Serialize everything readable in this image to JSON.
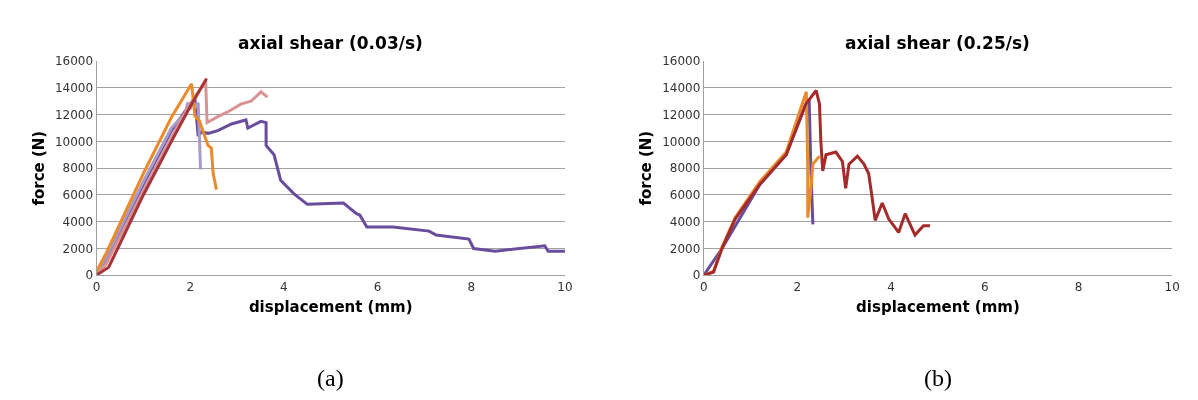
{
  "chart_data": [
    {
      "type": "line",
      "title": "axial shear (0.03/s)",
      "xlabel": "displacement (mm)",
      "ylabel": "force (N)",
      "annotations": [
        "(a)"
      ],
      "xlim": [
        0,
        10
      ],
      "xticks": [
        0,
        2,
        4,
        6,
        8,
        10
      ],
      "ylim": [
        0,
        16000
      ],
      "yticks": [
        0,
        2000,
        4000,
        6000,
        8000,
        10000,
        12000,
        14000,
        16000
      ],
      "grid": "y",
      "line_style": "solid",
      "series": [
        {
          "color": "#6a4c9c",
          "x": [
            0,
            0.2,
            1.0,
            1.6,
            2.0,
            2.1,
            2.17,
            2.24,
            2.38,
            2.59,
            2.88,
            3.19,
            3.23,
            3.51,
            3.62,
            3.62,
            3.79,
            3.93,
            4.21,
            4.5,
            5.27,
            5.55,
            5.62,
            5.77,
            6.33,
            7.1,
            7.25,
            7.95,
            8.05,
            8.51,
            9.57,
            9.64,
            10.0
          ],
          "values": [
            200,
            1200,
            6800,
            10800,
            12800,
            13200,
            10400,
            10700,
            10600,
            10800,
            11300,
            11600,
            11000,
            11500,
            11400,
            9700,
            9000,
            7100,
            6100,
            5300,
            5400,
            4600,
            4500,
            3600,
            3600,
            3300,
            3000,
            2700,
            2000,
            1800,
            2200,
            1800,
            1800
          ]
        },
        {
          "color": "#a99bc9",
          "x": [
            0,
            0.2,
            1.0,
            1.6,
            1.89,
            1.95,
            2.0,
            2.07,
            2.12,
            2.17,
            2.2,
            2.22
          ],
          "values": [
            200,
            1300,
            7000,
            11000,
            12100,
            12900,
            12400,
            13000,
            12500,
            12900,
            10000,
            7900
          ]
        },
        {
          "color": "#d89493",
          "x": [
            0,
            0.2,
            1.0,
            1.6,
            2.0,
            2.33,
            2.36,
            2.62,
            2.8,
            3.09,
            3.3,
            3.51,
            3.65
          ],
          "values": [
            100,
            800,
            6300,
            10300,
            12800,
            14500,
            11400,
            11900,
            12200,
            12800,
            13000,
            13700,
            13300
          ]
        },
        {
          "color": "#e98b2a",
          "x": [
            0,
            0.2,
            1.0,
            1.6,
            2.03,
            2.1,
            2.2,
            2.38,
            2.45,
            2.49,
            2.56
          ],
          "values": [
            300,
            1600,
            7600,
            11800,
            14300,
            11900,
            11500,
            9700,
            9500,
            7600,
            6400
          ]
        },
        {
          "color": "#a8343a",
          "x": [
            0,
            0.05,
            0.26,
            1.0,
            1.6,
            2.0,
            2.35
          ],
          "values": [
            100,
            120,
            600,
            6000,
            10000,
            12600,
            14700
          ]
        }
      ]
    },
    {
      "type": "line",
      "title": "axial shear (0.25/s)",
      "xlabel": "displacement (mm)",
      "ylabel": "force (N)",
      "annotations": [
        "(b)"
      ],
      "xlim": [
        0,
        10
      ],
      "xticks": [
        0,
        2,
        4,
        6,
        8,
        10
      ],
      "ylim": [
        0,
        16000
      ],
      "yticks": [
        0,
        2000,
        4000,
        6000,
        8000,
        10000,
        12000,
        14000,
        16000
      ],
      "grid": "y",
      "line_style": "solid",
      "series": [
        {
          "color": "#6a4c9c",
          "x": [
            0,
            0.39,
            1.2,
            1.76,
            2.18,
            2.25,
            2.29,
            2.33
          ],
          "values": [
            0,
            2000,
            6800,
            9000,
            12800,
            13100,
            7600,
            3800
          ]
        },
        {
          "color": "#e98b2a",
          "x": [
            0,
            0.21,
            0.39,
            0.67,
            1.2,
            1.76,
            2.19,
            2.22,
            2.22,
            2.29,
            2.33,
            2.47
          ],
          "values": [
            0,
            300,
            2100,
            4300,
            7000,
            9200,
            13700,
            8000,
            4300,
            6600,
            8300,
            8900
          ]
        },
        {
          "color": "#a52a2a",
          "x": [
            0,
            0.21,
            0.39,
            0.67,
            1.2,
            1.76,
            2.18,
            2.4,
            2.47,
            2.5,
            2.54,
            2.61,
            2.82,
            2.96,
            3.03,
            3.1,
            3.28,
            3.42,
            3.52,
            3.59,
            3.66,
            3.81,
            3.95,
            4.16,
            4.3,
            4.51,
            4.69,
            4.83
          ],
          "values": [
            0,
            240,
            2000,
            4200,
            6800,
            9000,
            12800,
            13800,
            12800,
            10000,
            7800,
            9000,
            9200,
            8500,
            6500,
            8300,
            8900,
            8300,
            7600,
            5900,
            4100,
            5400,
            4200,
            3200,
            4600,
            3000,
            3700,
            3700
          ]
        }
      ]
    }
  ]
}
